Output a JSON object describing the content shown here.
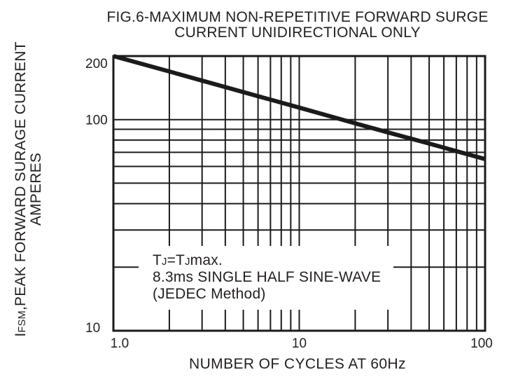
{
  "title": {
    "line1": "FIG.6-MAXIMUM NON-REPETITIVE FORWARD SURGE",
    "line2": "CURRENT UNIDIRECTIONAL ONLY"
  },
  "y_axis": {
    "label_prefix": "I",
    "label_sub": "FSM",
    "label_rest": ",PEAK FORWARD SURAGE CURRENT",
    "label_line2": "AMPERES"
  },
  "x_axis": {
    "label": "NUMBER OF CYCLES AT 60Hz"
  },
  "annotation": {
    "line1_t1": "T",
    "line1_sub1": "J",
    "line1_t2": "=T",
    "line1_sub2": "J",
    "line1_t3": "max.",
    "line2": "8.3ms SINGLE HALF SINE-WAVE",
    "line3": "(JEDEC Method)"
  },
  "colors": {
    "line": "#1b1b1b",
    "text": "#231f20",
    "background": "#ffffff"
  },
  "chart_data": {
    "type": "line",
    "title": "FIG.6-MAXIMUM NON-REPETITIVE FORWARD SURGE CURRENT UNIDIRECTIONAL ONLY",
    "xlabel": "NUMBER OF CYCLES AT 60Hz",
    "ylabel": "IFSM,PEAK FORWARD SURAGE CURRENT AMPERES",
    "x_scale": "log",
    "y_scale": "log",
    "xlim": [
      1,
      100
    ],
    "ylim": [
      10,
      200
    ],
    "grid": "log major+minor, full frame",
    "legend": "none",
    "x_ticks": [
      {
        "value": 1,
        "label": "1.0"
      },
      {
        "value": 10,
        "label": "10"
      },
      {
        "value": 100,
        "label": "100"
      }
    ],
    "y_ticks": [
      {
        "value": 200,
        "label": "200"
      },
      {
        "value": 100,
        "label": "100"
      },
      {
        "value": 10,
        "label": "10"
      }
    ],
    "series": [
      {
        "name": "IFSM peak forward surge current",
        "points": [
          [
            1,
            200
          ],
          [
            2,
            169
          ],
          [
            3,
            153
          ],
          [
            5,
            135
          ],
          [
            10,
            114
          ],
          [
            20,
            96
          ],
          [
            30,
            87
          ],
          [
            50,
            77
          ],
          [
            100,
            65
          ]
        ]
      }
    ],
    "annotation": "TJ=TJmax. 8.3ms SINGLE HALF SINE-WAVE (JEDEC Method)"
  }
}
